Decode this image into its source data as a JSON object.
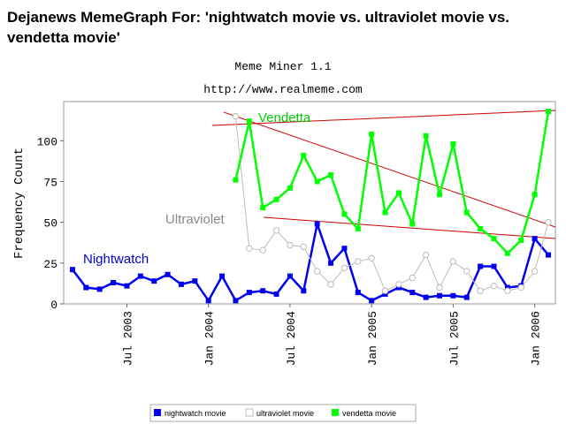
{
  "chart_data": {
    "type": "line",
    "title": "Dejanews MemeGraph For: 'nightwatch movie vs. ultraviolet movie vs. vendetta movie'",
    "subtitle": [
      "Meme Miner 1.1",
      "http://www.realmeme.com"
    ],
    "y_label": "Frequency Count",
    "annotations": [
      {
        "text": "Vendetta",
        "color": "#00cc00"
      },
      {
        "text": "Ultraviolet",
        "color": "#888888"
      },
      {
        "text": "Nightwatch",
        "color": "#0000cc"
      }
    ],
    "x": [
      "2003-03",
      "2003-04",
      "2003-05",
      "2003-06",
      "2003-07",
      "2003-08",
      "2003-09",
      "2003-10",
      "2003-11",
      "2003-12",
      "2004-01",
      "2004-02",
      "2004-03",
      "2004-04",
      "2004-05",
      "2004-06",
      "2004-07",
      "2004-08",
      "2004-09",
      "2004-10",
      "2004-11",
      "2004-12",
      "2005-01",
      "2005-02",
      "2005-03",
      "2005-04",
      "2005-05",
      "2005-06",
      "2005-07",
      "2005-08",
      "2005-09",
      "2005-10",
      "2005-11",
      "2005-12",
      "2006-01",
      "2006-02"
    ],
    "xlim": [
      "2003-03",
      "2006-02"
    ],
    "xticks": [
      {
        "value": "2003-07",
        "label": "Jul 2003"
      },
      {
        "value": "2004-01",
        "label": "Jan 2004"
      },
      {
        "value": "2004-07",
        "label": "Jul 2004"
      },
      {
        "value": "2005-01",
        "label": "Jan 2005"
      },
      {
        "value": "2005-07",
        "label": "Jul 2005"
      },
      {
        "value": "2006-01",
        "label": "Jan 2006"
      }
    ],
    "ylim": [
      0,
      124
    ],
    "yticks": [
      0,
      25,
      50,
      75,
      100
    ],
    "series": [
      {
        "name": "nightwatch movie",
        "color": "#0000ee",
        "marker": "square",
        "values": [
          21,
          10,
          9,
          13,
          11,
          17,
          14,
          18,
          12,
          14,
          2,
          17,
          2,
          7,
          8,
          6,
          17,
          8,
          49,
          25,
          34,
          7,
          2,
          6,
          10,
          7,
          4,
          5,
          5,
          4,
          23,
          23,
          10,
          11,
          40,
          30
        ]
      },
      {
        "name": "ultraviolet movie",
        "color": "#bbbbbb",
        "marker": "circle",
        "values": [
          null,
          null,
          null,
          null,
          null,
          null,
          null,
          null,
          null,
          null,
          null,
          null,
          115,
          34,
          33,
          45,
          36,
          35,
          20,
          12,
          22,
          26,
          28,
          8,
          12,
          16,
          30,
          10,
          26,
          20,
          8,
          11,
          8,
          10,
          20,
          50
        ]
      },
      {
        "name": "vendetta movie",
        "color": "#00ff00",
        "marker": "square",
        "values": [
          null,
          null,
          null,
          null,
          null,
          null,
          null,
          null,
          null,
          null,
          null,
          null,
          76,
          112,
          59,
          64,
          71,
          91,
          75,
          79,
          55,
          46,
          104,
          56,
          68,
          49,
          103,
          67,
          98,
          56,
          46,
          40,
          31,
          39,
          67,
          118
        ]
      }
    ]
  }
}
